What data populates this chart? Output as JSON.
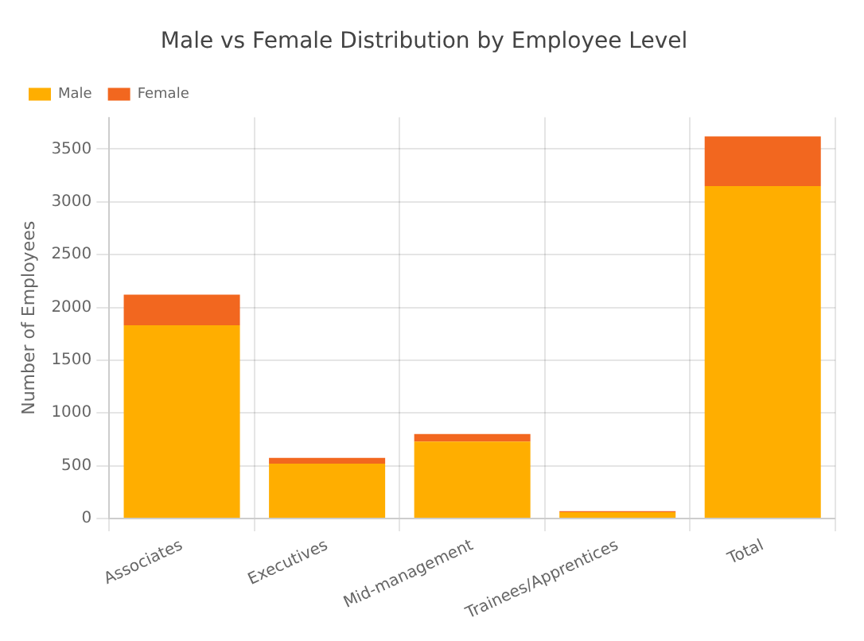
{
  "chart_data": {
    "type": "bar",
    "stacked": true,
    "title": "Male vs Female Distribution by Employee Level",
    "ylabel": "Number of Employees",
    "categories": [
      "Associates",
      "Executives",
      "Mid-management",
      "Trainees/Apprentices",
      "Total"
    ],
    "series": [
      {
        "name": "Male",
        "color": "#ffae00",
        "values": [
          1830,
          520,
          730,
          60,
          3150
        ]
      },
      {
        "name": "Female",
        "color": "#f2671f",
        "values": [
          290,
          55,
          70,
          10,
          470
        ]
      }
    ],
    "ylim": [
      0,
      3800
    ],
    "yticks": [
      0,
      500,
      1000,
      1500,
      2000,
      2500,
      3000,
      3500
    ],
    "grid": true,
    "legend": "top left"
  }
}
